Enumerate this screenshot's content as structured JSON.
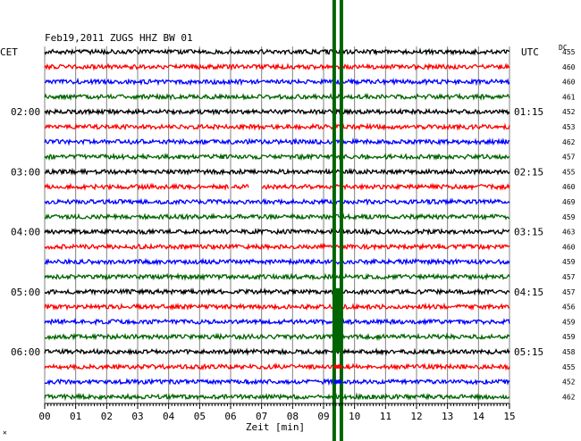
{
  "chart_data": {
    "type": "line",
    "title": "Feb19,2011   ZUGS HHZ BW 01",
    "xlabel": "Zeit [min]",
    "left_axis_label": "CET",
    "right_axis_label": "UTC",
    "dc_label": "DC",
    "x_ticks": [
      "00",
      "01",
      "02",
      "03",
      "04",
      "05",
      "06",
      "07",
      "08",
      "09",
      "10",
      "11",
      "12",
      "13",
      "14",
      "15"
    ],
    "xlim": [
      0,
      15
    ],
    "trace_colors": [
      "#000000",
      "#ff0000",
      "#0000ff",
      "#006400"
    ],
    "event_marker_color": "#006400",
    "event_marker_minute": 9.3,
    "traces_count": 24,
    "left_hour_labels": [
      {
        "trace": 4,
        "text": "02:00"
      },
      {
        "trace": 8,
        "text": "03:00"
      },
      {
        "trace": 12,
        "text": "04:00"
      },
      {
        "trace": 16,
        "text": "05:00"
      },
      {
        "trace": 20,
        "text": "06:00"
      }
    ],
    "right_hour_labels": [
      {
        "trace": 4,
        "text": "01:15"
      },
      {
        "trace": 8,
        "text": "02:15"
      },
      {
        "trace": 12,
        "text": "03:15"
      },
      {
        "trace": 16,
        "text": "04:15"
      },
      {
        "trace": 20,
        "text": "05:15"
      }
    ],
    "dc_offsets": [
      "455",
      "460",
      "460",
      "461",
      "452",
      "453",
      "462",
      "457",
      "455",
      "460",
      "469",
      "459",
      "463",
      "460",
      "459",
      "457",
      "457",
      "456",
      "459",
      "459",
      "458",
      "455",
      "452",
      "462"
    ],
    "gap_segments": [
      {
        "trace": 9,
        "from_minute": 5.95,
        "to_minute": 6.0
      },
      {
        "trace": 9,
        "from_minute": 6.6,
        "to_minute": 7.0
      }
    ]
  }
}
